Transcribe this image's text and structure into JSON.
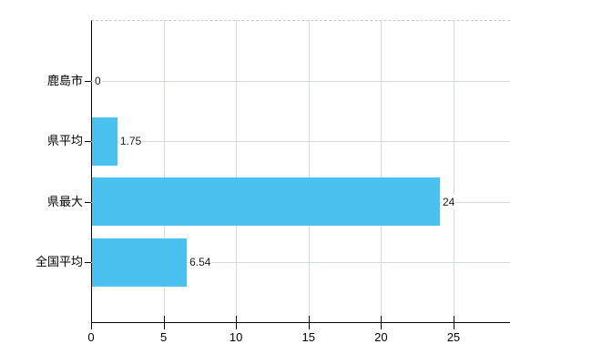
{
  "chart_data": {
    "type": "bar",
    "orientation": "horizontal",
    "title": "",
    "categories": [
      "鹿島市",
      "県平均",
      "県最大",
      "全国平均"
    ],
    "values": [
      0,
      1.75,
      24,
      6.54
    ],
    "value_labels": [
      "0",
      "1.75",
      "24",
      "6.54"
    ],
    "x_ticks": [
      0,
      5,
      10,
      15,
      20,
      25
    ],
    "x_tick_labels": [
      "0",
      "5",
      "10",
      "15",
      "20",
      "25"
    ],
    "xlim": [
      0,
      28.9
    ],
    "grid": true,
    "legend": false,
    "colors": {
      "bar": "#4ac1ef",
      "gridline": "#d4ddd4",
      "axis": "#000000",
      "plot_top_border": "#c9c9c9",
      "text": "#000000",
      "background": "#ffffff"
    }
  }
}
